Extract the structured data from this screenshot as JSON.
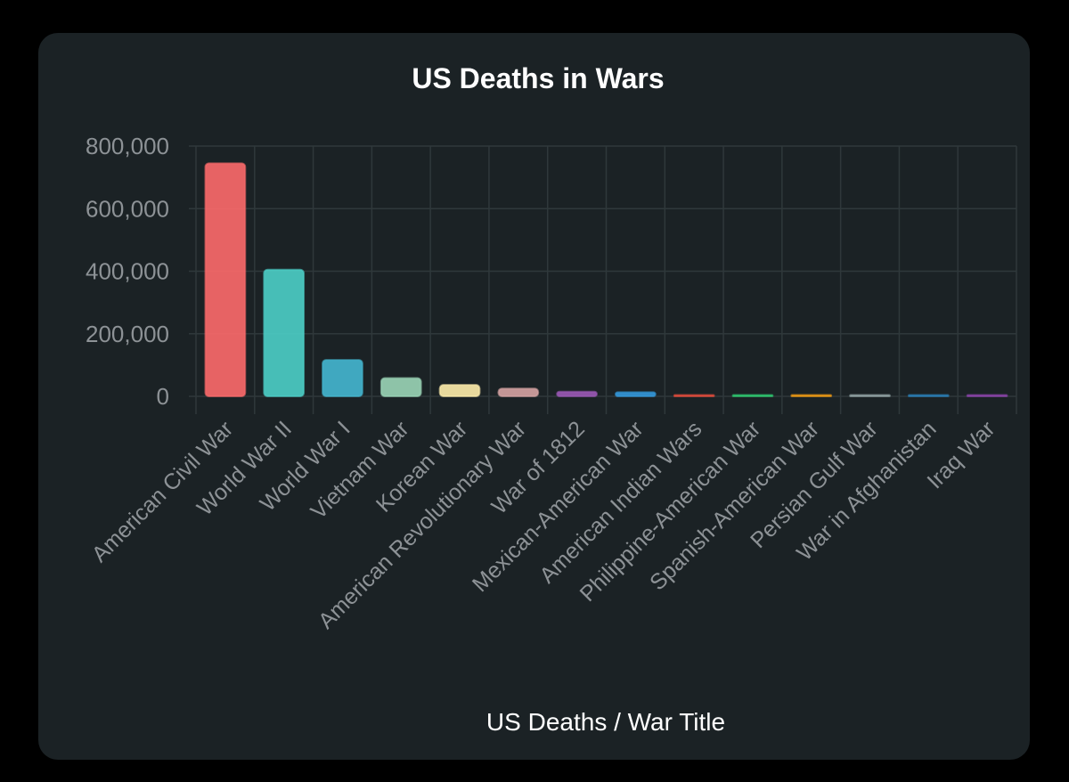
{
  "chart_data": {
    "type": "bar",
    "title": "US Deaths in Wars",
    "xlabel": "US Deaths / War Title",
    "ylabel": "",
    "ylim": [
      0,
      800000
    ],
    "yticks": [
      0,
      200000,
      400000,
      600000,
      800000
    ],
    "ytick_labels": [
      "0",
      "200,000",
      "400,000",
      "600,000",
      "800,000"
    ],
    "categories": [
      "American Civil War",
      "World War II",
      "World War I",
      "Vietnam War",
      "Korean War",
      "American Revolutionary War",
      "War of 1812",
      "Mexican-American War",
      "American Indian Wars",
      "Philippine-American War",
      "Spanish-American War",
      "Persian Gulf War",
      "War in Afghanistan",
      "Iraq War"
    ],
    "values": [
      745000,
      405000,
      116500,
      58200,
      36500,
      25000,
      15000,
      13300,
      3000,
      1000,
      2400,
      1950,
      1850,
      1800
    ],
    "colors": [
      "#fe6a6b",
      "#4ccfc8",
      "#45b7d1",
      "#9bd5b7",
      "#ffedab",
      "#d6a3a3",
      "#9b59b6",
      "#3498db",
      "#e74c3c",
      "#2ecc71",
      "#f39c12",
      "#95a5a6",
      "#2980b9",
      "#8e44ad"
    ],
    "grid": true,
    "legend": "none"
  }
}
